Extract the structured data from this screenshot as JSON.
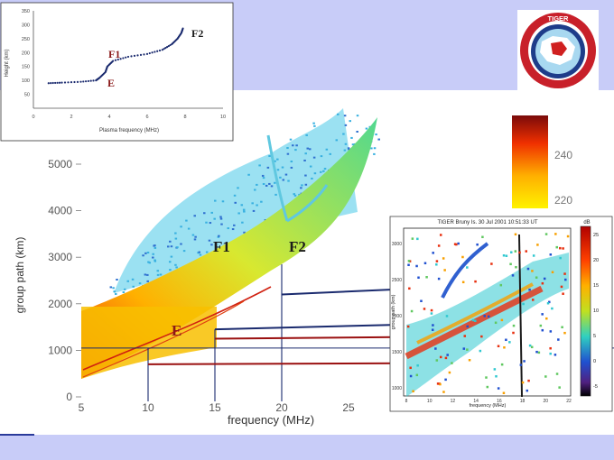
{
  "colors": {
    "frame_band": "#c8ccf8",
    "background": "#ffffff",
    "line": "#1a2a6e",
    "red_line": "#9a1010",
    "layer_label": "#8a1a1a",
    "label_dark": "#1a1a1a"
  },
  "logo": {
    "text": "TIGER",
    "icon": "globe-seal-icon"
  },
  "chart_data": [
    {
      "type": "line",
      "xlabel": "Plasma frequency (MHz)",
      "ylabel": "Height (km)",
      "xlim": [
        0,
        10
      ],
      "ylim": [
        0,
        350
      ],
      "x_ticks": [
        "0",
        "2",
        "4",
        "6",
        "8",
        "10"
      ],
      "y_ticks": [
        "50",
        "100",
        "150",
        "200",
        "250",
        "300",
        "350"
      ],
      "annotations": [
        "F2",
        "F1",
        "E"
      ],
      "series": [
        {
          "x": [
            0.8,
            1.5,
            2.5,
            3.3,
            3.5,
            3.8,
            3.9,
            4.2,
            5.0,
            6.0,
            6.8,
            7.3,
            7.6,
            7.8,
            7.9
          ],
          "y": [
            90,
            92,
            95,
            100,
            110,
            130,
            150,
            170,
            185,
            195,
            210,
            230,
            250,
            270,
            290
          ]
        }
      ]
    },
    {
      "type": "scatter",
      "xlabel": "frequency (MHz)",
      "ylabel": "group path (km)",
      "xlim": [
        5,
        30
      ],
      "ylim": [
        0,
        5500
      ],
      "x_ticks": [
        "5",
        "10",
        "15",
        "20",
        "25"
      ],
      "y_ticks": [
        "0",
        "1000",
        "2000",
        "3000",
        "4000",
        "5000"
      ],
      "annotations": [
        "F1",
        "F2",
        "E"
      ],
      "colorbar_ticks": [
        "240",
        "220"
      ],
      "guide_frequencies_mhz": [
        10,
        15,
        20
      ],
      "guide_paths_km": [
        700,
        1050,
        1450,
        1850,
        2200
      ]
    },
    {
      "type": "heatmap",
      "title": "TIGER Bruny Is.   30 Jul 2001  10:51:33 UT",
      "xlabel": "frequency (MHz)",
      "ylabel": "group path (km)",
      "x_ticks": [
        "8",
        "10",
        "12",
        "14",
        "16",
        "18",
        "20",
        "22"
      ],
      "y_ticks": [
        "3000",
        "2500",
        "2000",
        "1500",
        "1000"
      ],
      "colorbar_label": "dB",
      "colorbar_ticks": [
        "25",
        "20",
        "15",
        "10",
        "5",
        "0",
        "-5"
      ]
    }
  ]
}
